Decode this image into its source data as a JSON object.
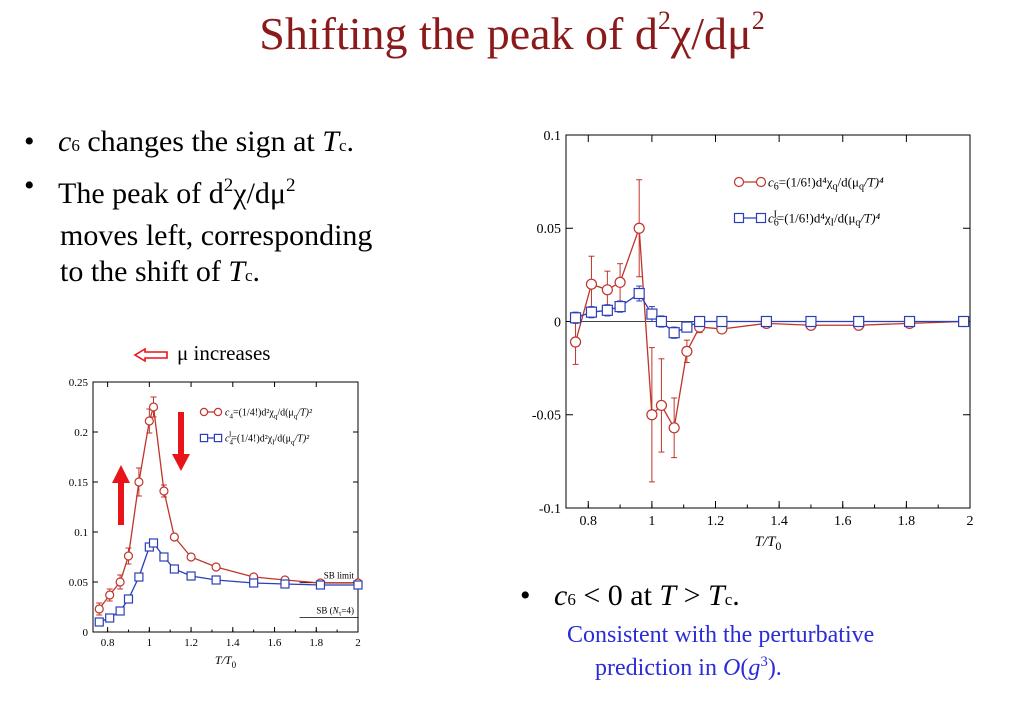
{
  "title": {
    "text": "Shifting the peak of d",
    "sup1": "2",
    "chi": "χ/dμ",
    "sup2": "2"
  },
  "bullets_left": [
    {
      "sym": "c",
      "sub": "6",
      "text": " changes the sign at ",
      "t": "T",
      "tsub": "c",
      "end": "."
    },
    {
      "line1": "The peak of d",
      "sup1": "2",
      "mid": "χ/dμ",
      "sup2": "2",
      "line2": "moves left, corresponding",
      "line3": "to the shift of ",
      "t": "T",
      "tsub": "c",
      "end": "."
    }
  ],
  "bullet_right": {
    "sym": "c",
    "sub": "6",
    "text": " < 0 at ",
    "t1": "T",
    "gt": " > ",
    "t2": "T",
    "tsub": "c",
    "end": "."
  },
  "blue_note": {
    "line1": "Consistent with the perturbative",
    "line2a": "prediction in ",
    "o": "O",
    "paren": "(",
    "g": "g",
    "sup": "3",
    "end": ")."
  },
  "mu_increases": "μ increases",
  "colors": {
    "title": "#8b1a1a",
    "red_series": "#c0342b",
    "blue_series": "#2a3fb8",
    "arrow": "#e8141a",
    "note": "#2b2bd8"
  },
  "chart_data": [
    {
      "type": "line",
      "ylim": [
        0,
        0.25
      ],
      "xlim": [
        0.73,
        2.0
      ],
      "xticks": [
        "0.8",
        "1",
        "1.2",
        "1.4",
        "1.6",
        "1.8",
        "2"
      ],
      "xtick_values": [
        0.8,
        1.0,
        1.2,
        1.4,
        1.6,
        1.8,
        2.0
      ],
      "yticks": [
        "0",
        "0.05",
        "0.1",
        "0.15",
        "0.2",
        "0.25"
      ],
      "ytick_values": [
        0,
        0.05,
        0.1,
        0.15,
        0.2,
        0.25
      ],
      "xlabel": "T/T",
      "xlabel_sub": "0",
      "legend_placement": "top-right",
      "annotations": {
        "sb_limit": "SB limit",
        "sb_nt_a": "SB (",
        "sb_nt_n": "N",
        "sb_nt_sub": "τ",
        "sb_nt_b": "=4)"
      },
      "sb_limit_value": 0.0493,
      "sb_nt4_value": 0.0145,
      "series": [
        {
          "legend_sym": "c",
          "legend_sub": "4",
          "legend_text": "=(1/4!)d²χ",
          "legend_q": "q",
          "legend_mid": "/d(μ",
          "legend_q2": "q",
          "legend_end": "/T)²",
          "marker": "circle",
          "color": "#c0342b",
          "x": [
            0.76,
            0.81,
            0.86,
            0.9,
            0.95,
            1.0,
            1.02,
            1.07,
            1.12,
            1.2,
            1.32,
            1.5,
            1.65,
            1.82,
            2.0
          ],
          "y": [
            0.023,
            0.037,
            0.05,
            0.076,
            0.15,
            0.211,
            0.225,
            0.141,
            0.095,
            0.075,
            0.065,
            0.055,
            0.052,
            0.049,
            0.049
          ],
          "err": [
            0.006,
            0.006,
            0.007,
            0.008,
            0.014,
            0.012,
            0.01,
            0.006,
            0.004,
            0.003,
            0.002,
            0.002,
            0.002,
            0.001,
            0.001
          ]
        },
        {
          "legend_sym": "c",
          "legend_sub": "4",
          "legend_supI": "I",
          "legend_text": "=(1/4!)d²χ",
          "legend_q": "I",
          "legend_mid": "/d(μ",
          "legend_q2": "q",
          "legend_end": "/T)²",
          "marker": "square",
          "color": "#2a3fb8",
          "x": [
            0.76,
            0.81,
            0.86,
            0.9,
            0.95,
            1.0,
            1.02,
            1.07,
            1.12,
            1.2,
            1.32,
            1.5,
            1.65,
            1.82,
            2.0
          ],
          "y": [
            0.01,
            0.014,
            0.021,
            0.033,
            0.055,
            0.085,
            0.089,
            0.075,
            0.063,
            0.056,
            0.052,
            0.049,
            0.048,
            0.047,
            0.047
          ],
          "err": [
            0.002,
            0.002,
            0.002,
            0.003,
            0.004,
            0.004,
            0.003,
            0.002,
            0.002,
            0.001,
            0.001,
            0.001,
            0.001,
            0.001,
            0.001
          ]
        }
      ]
    },
    {
      "type": "line",
      "ylim": [
        -0.1,
        0.1
      ],
      "xlim": [
        0.73,
        2.0
      ],
      "xticks": [
        "0.8",
        "1",
        "1.2",
        "1.4",
        "1.6",
        "1.8",
        "2"
      ],
      "xtick_values": [
        0.8,
        1.0,
        1.2,
        1.4,
        1.6,
        1.8,
        2.0
      ],
      "yticks": [
        "-0.1",
        "-0.05",
        "0",
        "0.05",
        "0.1"
      ],
      "ytick_values": [
        -0.1,
        -0.05,
        0,
        0.05,
        0.1
      ],
      "xlabel": "T/T",
      "xlabel_sub": "0",
      "legend_placement": "top-right",
      "series": [
        {
          "legend_sym": "c",
          "legend_sub": "6",
          "legend_text": "=(1/6!)d⁴χ",
          "legend_q": "q",
          "legend_mid": "/d(μ",
          "legend_q2": "q",
          "legend_end": "/T)⁴",
          "marker": "circle",
          "color": "#c0342b",
          "x": [
            0.76,
            0.81,
            0.86,
            0.9,
            0.96,
            1.0,
            1.03,
            1.07,
            1.11,
            1.15,
            1.22,
            1.36,
            1.5,
            1.65,
            1.81,
            1.98
          ],
          "y": [
            -0.011,
            0.02,
            0.017,
            0.021,
            0.05,
            -0.05,
            -0.045,
            -0.057,
            -0.016,
            -0.003,
            -0.004,
            -0.001,
            -0.002,
            -0.002,
            -0.001,
            0.0
          ],
          "err": [
            0.012,
            0.015,
            0.01,
            0.01,
            0.026,
            0.036,
            0.025,
            0.016,
            0.006,
            0.003,
            0.002,
            0.001,
            0.001,
            0.001,
            0.001,
            0.001
          ]
        },
        {
          "legend_sym": "c",
          "legend_sub": "6",
          "legend_supI": "I",
          "legend_text": "=(1/6!)d⁴χ",
          "legend_q": "I",
          "legend_mid": "/d(μ",
          "legend_q2": "q",
          "legend_end": "/T)⁴",
          "marker": "square",
          "color": "#2a3fb8",
          "x": [
            0.76,
            0.81,
            0.86,
            0.9,
            0.96,
            1.0,
            1.03,
            1.07,
            1.11,
            1.15,
            1.22,
            1.36,
            1.5,
            1.65,
            1.81,
            1.98
          ],
          "y": [
            0.002,
            0.005,
            0.006,
            0.008,
            0.015,
            0.004,
            0.0,
            -0.006,
            -0.003,
            0.0,
            0.0,
            0.0,
            0.0,
            0.0,
            0.0,
            0.0
          ],
          "err": [
            0.003,
            0.003,
            0.003,
            0.003,
            0.004,
            0.004,
            0.003,
            0.003,
            0.002,
            0.001,
            0.001,
            0.001,
            0.001,
            0.001,
            0.001,
            0.001
          ]
        }
      ]
    }
  ]
}
